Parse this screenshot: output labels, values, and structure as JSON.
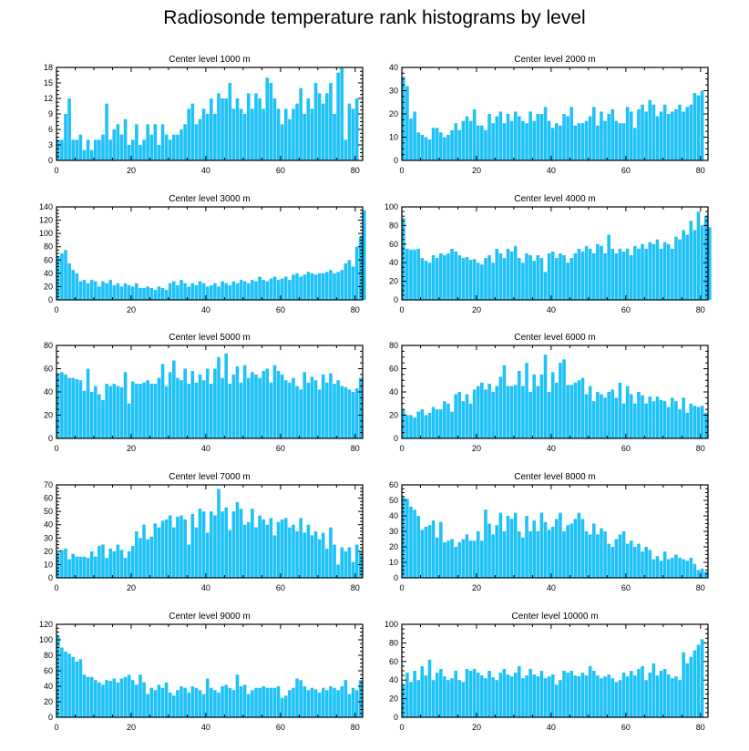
{
  "title": "Radiosonde temperature rank histograms by level",
  "bar_color": "#1ec2f8",
  "chart_data": [
    {
      "type": "bar",
      "title": "Center level 1000 m",
      "xlim": [
        0,
        82
      ],
      "ylim": [
        0,
        18
      ],
      "xticks": [
        0,
        20,
        40,
        60,
        80
      ],
      "yticks": [
        0,
        3,
        6,
        9,
        12,
        15,
        18
      ],
      "values": [
        4,
        4,
        9,
        12,
        4,
        4,
        5,
        2,
        4,
        2,
        4,
        4,
        5,
        11,
        4,
        6,
        7,
        5,
        8,
        3,
        4,
        7,
        3,
        4,
        7,
        5,
        7,
        3,
        7,
        5,
        4,
        5,
        5,
        6,
        7,
        10,
        11,
        7,
        8,
        10,
        9,
        12,
        9,
        13,
        12,
        12,
        15,
        10,
        12,
        10,
        9,
        13,
        10,
        13,
        12,
        10,
        16,
        15,
        12,
        10,
        7,
        10,
        8,
        10,
        11,
        14,
        9,
        12,
        10,
        15,
        13,
        11,
        13,
        15,
        9,
        17,
        18,
        4,
        11,
        10,
        12
      ]
    },
    {
      "type": "bar",
      "title": "Center level 2000 m",
      "xlim": [
        0,
        82
      ],
      "ylim": [
        0,
        40
      ],
      "xticks": [
        0,
        20,
        40,
        60,
        80
      ],
      "yticks": [
        0,
        10,
        20,
        30,
        40
      ],
      "values": [
        36,
        32,
        18,
        21,
        12,
        11,
        10,
        9,
        14,
        14,
        12,
        10,
        11,
        13,
        16,
        13,
        17,
        19,
        17,
        22,
        15,
        15,
        13,
        20,
        16,
        19,
        21,
        16,
        20,
        17,
        21,
        19,
        17,
        16,
        21,
        17,
        20,
        20,
        23,
        17,
        14,
        16,
        15,
        20,
        19,
        23,
        15,
        16,
        16,
        17,
        19,
        23,
        15,
        21,
        17,
        20,
        22,
        17,
        16,
        16,
        23,
        21,
        14,
        22,
        24,
        21,
        26,
        24,
        19,
        21,
        24,
        20,
        21,
        22,
        24,
        21,
        23,
        24,
        29,
        28,
        30
      ]
    },
    {
      "type": "bar",
      "title": "Center level 3000 m",
      "xlim": [
        0,
        82
      ],
      "ylim": [
        0,
        140
      ],
      "xticks": [
        0,
        20,
        40,
        60,
        80
      ],
      "yticks": [
        0,
        20,
        40,
        60,
        80,
        100,
        120,
        140
      ],
      "values": [
        65,
        70,
        75,
        55,
        45,
        40,
        28,
        30,
        25,
        30,
        28,
        20,
        28,
        25,
        30,
        22,
        25,
        20,
        25,
        22,
        20,
        25,
        18,
        18,
        20,
        18,
        15,
        20,
        18,
        15,
        25,
        28,
        22,
        30,
        25,
        20,
        25,
        22,
        28,
        25,
        20,
        22,
        25,
        20,
        28,
        25,
        22,
        28,
        25,
        30,
        28,
        25,
        30,
        28,
        35,
        30,
        28,
        32,
        35,
        30,
        32,
        35,
        30,
        38,
        40,
        35,
        38,
        42,
        40,
        38,
        40,
        40,
        42,
        45,
        40,
        42,
        45,
        55,
        60,
        50,
        80,
        95,
        135
      ]
    },
    {
      "type": "bar",
      "title": "Center level 4000 m",
      "xlim": [
        0,
        82
      ],
      "ylim": [
        0,
        100
      ],
      "xticks": [
        0,
        20,
        40,
        60,
        80
      ],
      "yticks": [
        0,
        20,
        40,
        60,
        80,
        100
      ],
      "values": [
        88,
        55,
        54,
        54,
        55,
        45,
        42,
        40,
        48,
        45,
        50,
        48,
        50,
        55,
        52,
        48,
        45,
        46,
        43,
        44,
        40,
        38,
        45,
        48,
        40,
        55,
        50,
        45,
        55,
        52,
        58,
        45,
        40,
        50,
        48,
        42,
        48,
        45,
        30,
        50,
        52,
        45,
        50,
        48,
        40,
        45,
        50,
        55,
        52,
        58,
        55,
        50,
        60,
        58,
        50,
        70,
        55,
        50,
        55,
        52,
        55,
        48,
        58,
        55,
        60,
        55,
        62,
        60,
        65,
        55,
        62,
        60,
        55,
        68,
        65,
        75,
        70,
        85,
        75,
        95,
        80,
        90,
        78
      ]
    },
    {
      "type": "bar",
      "title": "Center level 5000 m",
      "xlim": [
        0,
        82
      ],
      "ylim": [
        0,
        80
      ],
      "xticks": [
        0,
        20,
        40,
        60,
        80
      ],
      "yticks": [
        0,
        20,
        40,
        60,
        80
      ],
      "values": [
        56,
        57,
        55,
        52,
        52,
        51,
        50,
        41,
        60,
        40,
        45,
        38,
        33,
        47,
        45,
        47,
        45,
        44,
        57,
        30,
        49,
        47,
        47,
        48,
        50,
        47,
        47,
        52,
        64,
        45,
        57,
        67,
        52,
        50,
        60,
        47,
        58,
        48,
        55,
        50,
        60,
        47,
        60,
        70,
        52,
        73,
        47,
        55,
        62,
        48,
        63,
        52,
        57,
        55,
        52,
        58,
        60,
        48,
        63,
        58,
        55,
        50,
        48,
        52,
        45,
        42,
        57,
        48,
        53,
        50,
        42,
        55,
        48,
        56,
        47,
        50,
        45,
        44,
        42,
        40,
        43,
        52
      ]
    },
    {
      "type": "bar",
      "title": "Center level 6000 m",
      "xlim": [
        0,
        82
      ],
      "ylim": [
        0,
        80
      ],
      "xticks": [
        0,
        20,
        40,
        60,
        80
      ],
      "yticks": [
        0,
        20,
        40,
        60,
        80
      ],
      "values": [
        25,
        20,
        20,
        18,
        23,
        25,
        20,
        22,
        27,
        25,
        25,
        32,
        30,
        23,
        38,
        40,
        32,
        38,
        30,
        42,
        45,
        48,
        42,
        47,
        40,
        45,
        53,
        63,
        45,
        45,
        46,
        58,
        45,
        65,
        40,
        55,
        45,
        55,
        72,
        40,
        57,
        48,
        65,
        68,
        46,
        46,
        48,
        50,
        52,
        38,
        45,
        32,
        40,
        38,
        35,
        40,
        42,
        35,
        48,
        30,
        45,
        38,
        30,
        40,
        37,
        30,
        36,
        32,
        36,
        33,
        32,
        27,
        35,
        32,
        25,
        35,
        22,
        30,
        28,
        27,
        28,
        22
      ]
    },
    {
      "type": "bar",
      "title": "Center level 7000 m",
      "xlim": [
        0,
        82
      ],
      "ylim": [
        0,
        70
      ],
      "xticks": [
        0,
        20,
        40,
        60,
        80
      ],
      "yticks": [
        0,
        10,
        20,
        30,
        40,
        50,
        60,
        70
      ],
      "values": [
        19,
        21,
        22,
        14,
        18,
        16,
        16,
        16,
        15,
        20,
        16,
        24,
        25,
        15,
        22,
        20,
        25,
        21,
        15,
        20,
        24,
        35,
        30,
        40,
        29,
        31,
        41,
        38,
        43,
        44,
        47,
        38,
        46,
        47,
        44,
        25,
        48,
        38,
        52,
        50,
        34,
        50,
        47,
        67,
        50,
        53,
        36,
        50,
        57,
        52,
        40,
        42,
        52,
        38,
        47,
        44,
        40,
        45,
        32,
        42,
        44,
        45,
        38,
        40,
        35,
        45,
        34,
        40,
        32,
        35,
        29,
        34,
        22,
        38,
        25,
        10,
        23,
        20,
        23,
        12,
        25,
        20
      ]
    },
    {
      "type": "bar",
      "title": "Center level 8000 m",
      "xlim": [
        0,
        82
      ],
      "ylim": [
        0,
        60
      ],
      "xticks": [
        0,
        20,
        40,
        60,
        80
      ],
      "yticks": [
        0,
        10,
        20,
        30,
        40,
        50,
        60
      ],
      "values": [
        52,
        51,
        46,
        44,
        40,
        31,
        33,
        34,
        37,
        26,
        36,
        23,
        24,
        25,
        20,
        23,
        25,
        28,
        24,
        24,
        30,
        24,
        44,
        35,
        28,
        34,
        42,
        30,
        40,
        38,
        42,
        30,
        26,
        40,
        30,
        37,
        30,
        42,
        36,
        31,
        33,
        38,
        42,
        30,
        34,
        35,
        38,
        42,
        38,
        30,
        28,
        35,
        28,
        32,
        30,
        22,
        20,
        25,
        28,
        30,
        22,
        24,
        20,
        22,
        17,
        20,
        18,
        12,
        14,
        11,
        17,
        12,
        13,
        15,
        13,
        12,
        11,
        13,
        9,
        5,
        6,
        4
      ]
    },
    {
      "type": "bar",
      "title": "Center level 9000 m",
      "xlim": [
        0,
        82
      ],
      "ylim": [
        0,
        120
      ],
      "xticks": [
        0,
        20,
        40,
        60,
        80
      ],
      "yticks": [
        0,
        20,
        40,
        60,
        80,
        100,
        120
      ],
      "values": [
        105,
        90,
        85,
        82,
        78,
        72,
        75,
        55,
        52,
        52,
        48,
        45,
        42,
        48,
        47,
        50,
        45,
        50,
        52,
        55,
        48,
        42,
        55,
        45,
        30,
        38,
        35,
        42,
        38,
        45,
        32,
        28,
        35,
        40,
        38,
        32,
        40,
        38,
        35,
        30,
        50,
        38,
        35,
        32,
        40,
        42,
        38,
        35,
        55,
        40,
        42,
        30,
        35,
        38,
        38,
        40,
        38,
        38,
        38,
        40,
        25,
        28,
        35,
        38,
        50,
        48,
        40,
        35,
        38,
        36,
        32,
        38,
        35,
        40,
        38,
        35,
        40,
        48,
        30,
        38,
        35,
        48
      ]
    },
    {
      "type": "bar",
      "title": "Center level 10000 m",
      "xlim": [
        0,
        82
      ],
      "ylim": [
        0,
        100
      ],
      "xticks": [
        0,
        20,
        40,
        60,
        80
      ],
      "yticks": [
        0,
        20,
        40,
        60,
        80,
        100
      ],
      "values": [
        35,
        48,
        38,
        50,
        40,
        55,
        45,
        62,
        40,
        48,
        52,
        44,
        40,
        42,
        50,
        40,
        38,
        52,
        50,
        52,
        48,
        45,
        42,
        50,
        43,
        40,
        48,
        52,
        46,
        44,
        48,
        55,
        42,
        45,
        52,
        46,
        44,
        50,
        42,
        44,
        46,
        35,
        40,
        50,
        48,
        50,
        45,
        44,
        48,
        45,
        55,
        50,
        45,
        42,
        44,
        46,
        42,
        38,
        40,
        48,
        44,
        50,
        45,
        52,
        55,
        40,
        48,
        58,
        45,
        50,
        52,
        46,
        42,
        44,
        40,
        70,
        58,
        65,
        72,
        78,
        84
      ]
    }
  ]
}
